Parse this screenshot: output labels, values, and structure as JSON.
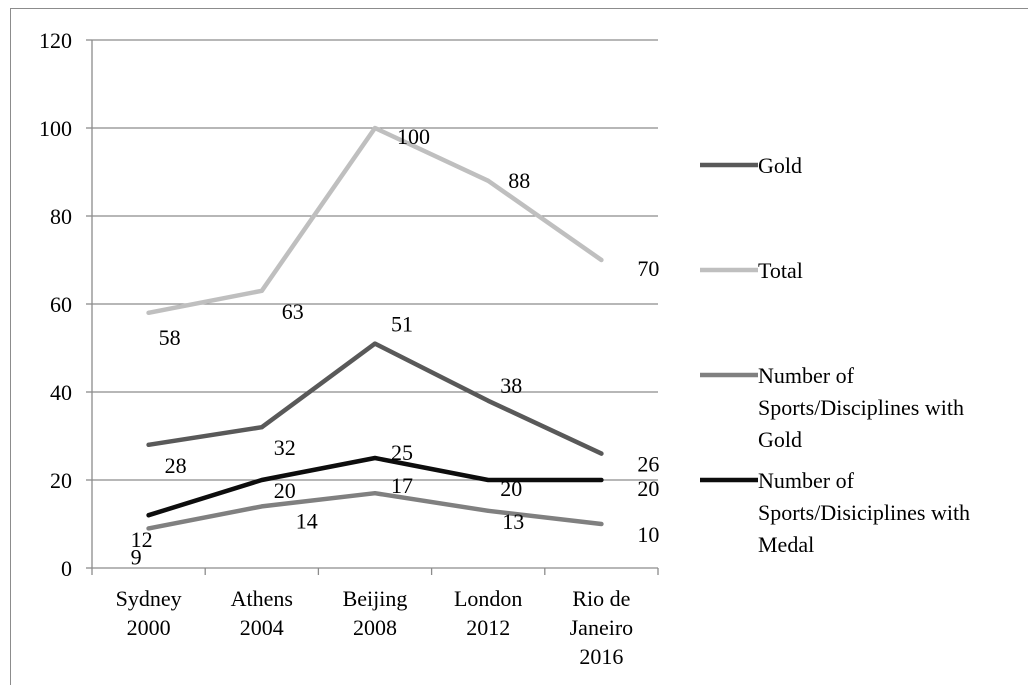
{
  "chart_data": {
    "type": "line",
    "title": "",
    "xlabel": "",
    "ylabel": "",
    "categories": [
      [
        "Sydney",
        "2000"
      ],
      [
        "Athens",
        "2004"
      ],
      [
        "Beijing",
        "2008"
      ],
      [
        "London",
        "2012"
      ],
      [
        "Rio de",
        "Janeiro",
        "2016"
      ]
    ],
    "ylim": [
      0,
      120
    ],
    "yticks": [
      "0",
      "20",
      "40",
      "60",
      "80",
      "100",
      "120"
    ],
    "grid": true,
    "legend_position": "right",
    "series": [
      {
        "name": "Gold",
        "legend_lines": [
          "Gold"
        ],
        "color": "#595959",
        "values": [
          28,
          32,
          51,
          38,
          26
        ]
      },
      {
        "name": "Total",
        "legend_lines": [
          "Total"
        ],
        "color": "#bfbfbf",
        "values": [
          58,
          63,
          100,
          88,
          70
        ]
      },
      {
        "name": "Number of Sports/Disciplines with Gold",
        "legend_lines": [
          "Number of",
          "Sports/Disciplines with",
          "Gold"
        ],
        "color": "#808080",
        "values": [
          9,
          14,
          17,
          13,
          10
        ]
      },
      {
        "name": "Number of Sports/Disiciplines with Medal",
        "legend_lines": [
          "Number of",
          "Sports/Disiciplines with",
          "Medal"
        ],
        "color": "#0d0d0d",
        "values": [
          12,
          20,
          25,
          20,
          20
        ]
      }
    ]
  }
}
